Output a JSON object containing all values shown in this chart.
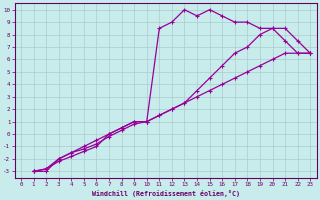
{
  "xlabel": "Windchill (Refroidissement éolien,°C)",
  "bg_color": "#c8ecec",
  "line_color": "#990099",
  "grid_color": "#aacccc",
  "axis_color": "#660066",
  "text_color": "#660066",
  "xlim": [
    -0.5,
    23.5
  ],
  "ylim": [
    -3.5,
    10.5
  ],
  "xticks": [
    0,
    1,
    2,
    3,
    4,
    5,
    6,
    7,
    8,
    9,
    10,
    11,
    12,
    13,
    14,
    15,
    16,
    17,
    18,
    19,
    20,
    21,
    22,
    23
  ],
  "yticks": [
    -3,
    -2,
    -1,
    0,
    1,
    2,
    3,
    4,
    5,
    6,
    7,
    8,
    9,
    10
  ],
  "line1_x": [
    1,
    2,
    3,
    4,
    5,
    6,
    7,
    8,
    9,
    10,
    11,
    12,
    13,
    14,
    15,
    16,
    17,
    18,
    19,
    20,
    21,
    22,
    23
  ],
  "line1_y": [
    -3,
    -3,
    -2,
    -1.5,
    -1,
    -0.5,
    0,
    0.5,
    1,
    1,
    8.5,
    9,
    10,
    9.5,
    10,
    9.5,
    9,
    9,
    8.5,
    8.5,
    7.5,
    6.5,
    6.5
  ],
  "line2_x": [
    1,
    2,
    3,
    4,
    5,
    6,
    7,
    8,
    9,
    10,
    11,
    12,
    13,
    14,
    15,
    16,
    17,
    18,
    19,
    20,
    21,
    22,
    23
  ],
  "line2_y": [
    -3,
    -2.8,
    -2,
    -1.5,
    -1.2,
    -0.8,
    -0.2,
    0.3,
    0.8,
    1,
    1.5,
    2,
    2.5,
    3.5,
    4.5,
    5.5,
    6.5,
    7,
    8,
    8.5,
    8.5,
    7.5,
    6.5
  ],
  "line3_x": [
    1,
    2,
    3,
    4,
    5,
    6,
    7,
    8,
    9,
    10,
    11,
    12,
    13,
    14,
    15,
    16,
    17,
    18,
    19,
    20,
    21,
    22,
    23
  ],
  "line3_y": [
    -3,
    -2.8,
    -2.2,
    -1.8,
    -1.4,
    -1,
    0,
    0.5,
    1,
    1,
    1.5,
    2,
    2.5,
    3,
    3.5,
    4,
    4.5,
    5,
    5.5,
    6,
    6.5,
    6.5,
    6.5
  ]
}
